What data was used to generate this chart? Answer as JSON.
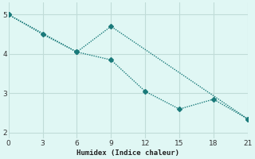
{
  "line1_x": [
    0,
    3,
    6,
    9,
    12,
    15,
    18,
    21
  ],
  "line1_y": [
    5.0,
    4.5,
    4.05,
    3.85,
    3.05,
    2.6,
    2.85,
    2.35
  ],
  "line2_x": [
    0,
    6,
    9,
    21
  ],
  "line2_y": [
    5.0,
    4.05,
    4.7,
    2.35
  ],
  "color": "#1a7a7a",
  "bg_color": "#e0f7f4",
  "grid_color": "#c0dcd8",
  "xlabel": "Humidex (Indice chaleur)",
  "xlim": [
    0,
    21
  ],
  "ylim": [
    1.85,
    5.3
  ],
  "xticks": [
    0,
    3,
    6,
    9,
    12,
    15,
    18,
    21
  ],
  "yticks": [
    2,
    3,
    4,
    5
  ],
  "marker": "D",
  "markersize": 3,
  "linewidth": 1.0
}
